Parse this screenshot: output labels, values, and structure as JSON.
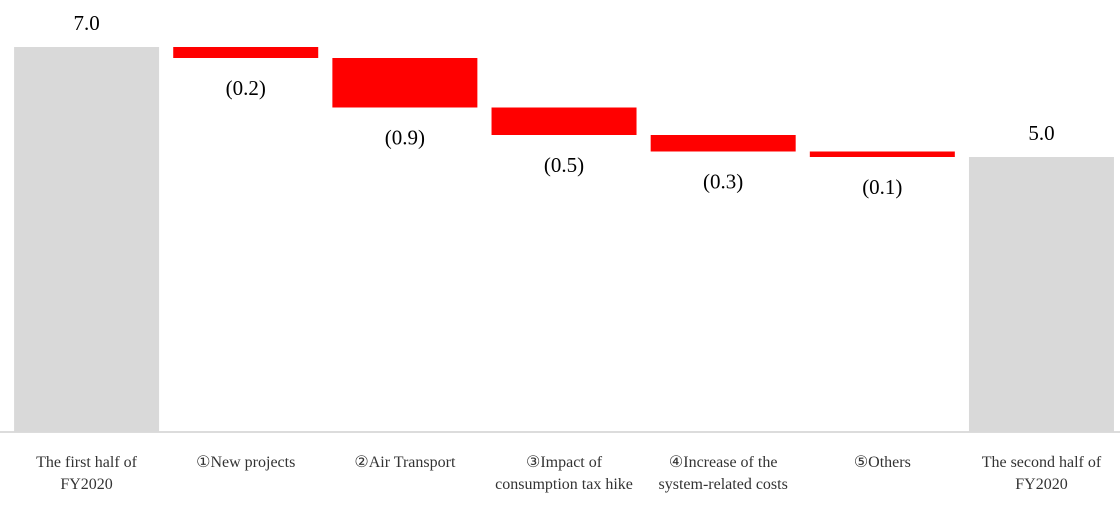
{
  "chart_data": {
    "type": "waterfall",
    "categories": [
      "The first half of FY2020",
      "①New projects",
      "②Air Transport",
      "③Impact of consumption tax hike",
      "④Increase of the system-related costs",
      "⑤Others",
      "The second half of FY2020"
    ],
    "values": [
      7.0,
      -0.2,
      -0.9,
      -0.5,
      -0.3,
      -0.1,
      5.0
    ],
    "value_labels": [
      "7.0",
      "(0.2)",
      "(0.9)",
      "(0.5)",
      "(0.3)",
      "(0.1)",
      "5.0"
    ],
    "total_color": "#d9d9d9",
    "decrease_color": "#ff0000"
  }
}
